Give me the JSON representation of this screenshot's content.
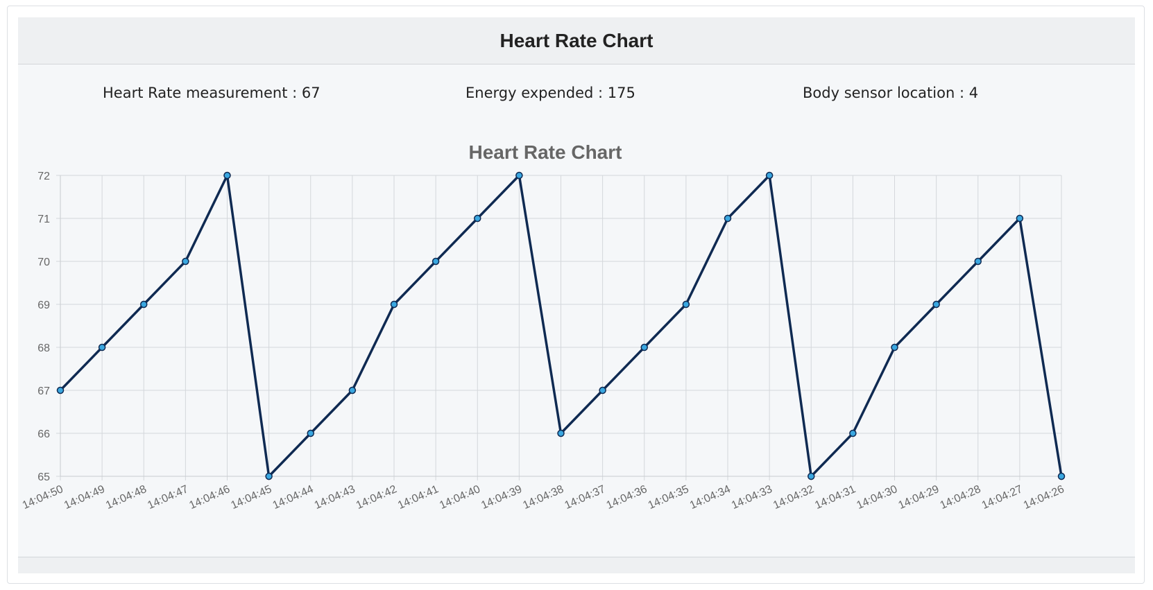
{
  "header": {
    "title": "Heart Rate Chart"
  },
  "stats": {
    "heart_rate": "Heart Rate measurement : 67",
    "energy": "Energy expended : 175",
    "sensor": "Body sensor location : 4"
  },
  "colors": {
    "line": "#0f2a52",
    "point_fill": "#3aa7e0",
    "grid": "#d4d7db",
    "axis_text": "#666666"
  },
  "chart_data": {
    "type": "line",
    "title": "Heart Rate Chart",
    "xlabel": "",
    "ylabel": "",
    "ylim": [
      65,
      72
    ],
    "yticks": [
      65,
      66,
      67,
      68,
      69,
      70,
      71,
      72
    ],
    "grid": true,
    "categories": [
      "14:04:50",
      "14:04:49",
      "14:04:48",
      "14:04:47",
      "14:04:46",
      "14:04:45",
      "14:04:44",
      "14:04:43",
      "14:04:42",
      "14:04:41",
      "14:04:40",
      "14:04:39",
      "14:04:38",
      "14:04:37",
      "14:04:36",
      "14:04:35",
      "14:04:34",
      "14:04:33",
      "14:04:32",
      "14:04:31",
      "14:04:30",
      "14:04:29",
      "14:04:28",
      "14:04:27",
      "14:04:26"
    ],
    "series": [
      {
        "values": [
          67,
          68,
          69,
          70,
          72,
          65,
          66,
          67,
          69,
          70,
          71,
          72,
          66,
          67,
          68,
          69,
          71,
          72,
          65,
          66,
          68,
          69,
          70,
          71,
          65
        ]
      }
    ]
  }
}
